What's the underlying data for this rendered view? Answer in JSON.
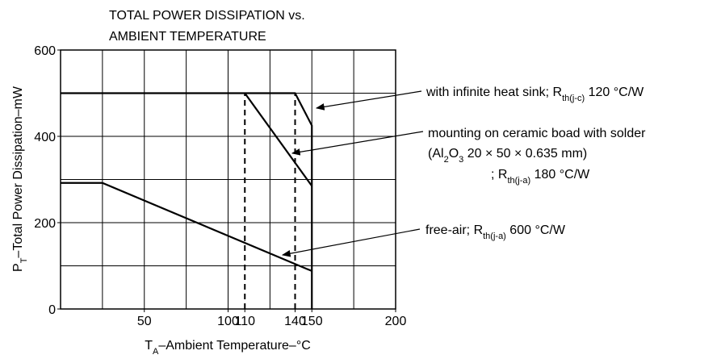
{
  "chart_data": {
    "type": "line",
    "title": [
      "TOTAL POWER DISSIPATION vs.",
      "AMBIENT TEMPERATURE"
    ],
    "x_label": [
      "T",
      "A",
      "–Ambient Temperature–°C"
    ],
    "y_label": [
      "P",
      "T",
      "–Total Power Dissipation–mW"
    ],
    "xlim": [
      0,
      200
    ],
    "ylim": [
      0,
      600
    ],
    "xticks": [
      50,
      100,
      110,
      140,
      150,
      200
    ],
    "yticks": [
      0,
      200,
      400,
      600
    ],
    "xgrid": [
      0,
      25,
      50,
      75,
      100,
      125,
      150,
      175,
      200
    ],
    "ygrid": [
      0,
      100,
      200,
      300,
      400,
      500,
      600
    ],
    "grid": true,
    "color": "#000000",
    "series": [
      {
        "x": [
          0,
          140,
          150,
          150
        ],
        "values": [
          500,
          500,
          425,
          0
        ]
      },
      {
        "x": [
          110,
          150
        ],
        "values": [
          500,
          285
        ]
      },
      {
        "x": [
          0,
          25,
          150
        ],
        "values": [
          292,
          292,
          88
        ]
      }
    ],
    "reference_lines": [
      110,
      140
    ],
    "annotations": [
      {
        "lines": [
          [
            "with infinite heat sink; R",
            "th(j-c)",
            " 120 °C/W"
          ]
        ]
      },
      {
        "lines": [
          [
            "mounting on ceramic boad with solder"
          ],
          [
            "(Al",
            "2",
            "O",
            "3",
            " 20 × 50 × 0.635 mm)"
          ],
          [
            "; R",
            "th(j-a)",
            " 180 °C/W"
          ]
        ]
      },
      {
        "lines": [
          [
            "free-air; R",
            "th(j-a)",
            " 600 °C/W"
          ]
        ]
      }
    ]
  }
}
